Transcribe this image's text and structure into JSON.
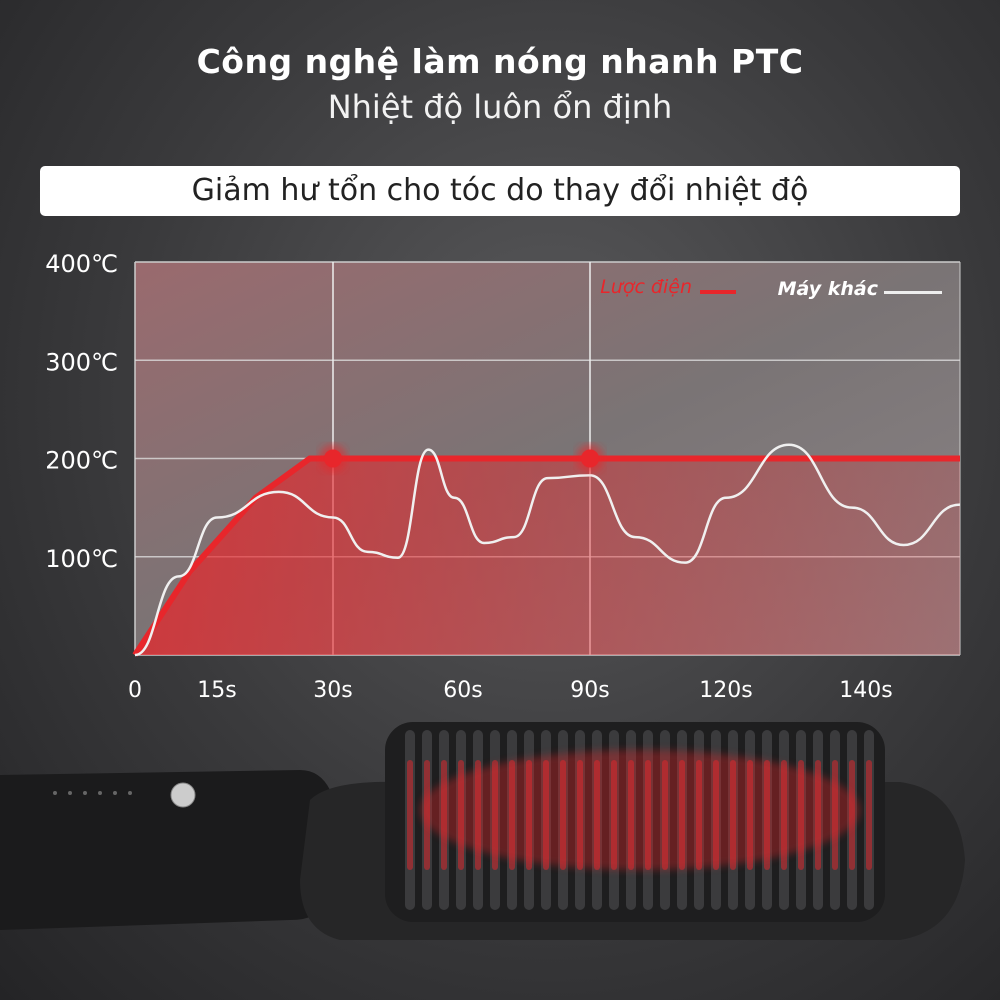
{
  "header": {
    "title": "Công nghệ làm nóng nhanh PTC",
    "subtitle": "Nhiệt độ luôn ổn định",
    "banner": "Giảm hư tổn cho tóc do thay đổi nhiệt độ"
  },
  "chart_data": {
    "type": "line",
    "xlabel": "",
    "ylabel": "",
    "x_ticks": [
      0,
      15,
      30,
      60,
      90,
      120,
      140
    ],
    "x_tick_labels": [
      "0",
      "15s",
      "30s",
      "60s",
      "90s",
      "120s",
      "140s"
    ],
    "y_ticks": [
      100,
      200,
      300,
      400
    ],
    "y_tick_labels": [
      "100℃",
      "200℃",
      "300℃",
      "400℃"
    ],
    "ylim": [
      0,
      400
    ],
    "grid": true,
    "legend_position": "top-right",
    "series": [
      {
        "name": "Lược điện",
        "color": "#e8262b",
        "x": [
          0,
          10,
          20,
          27,
          30,
          60,
          90,
          120,
          140,
          155
        ],
        "y": [
          0,
          85,
          160,
          200,
          200,
          200,
          200,
          200,
          200,
          200
        ],
        "markers_x": [
          30,
          90
        ]
      },
      {
        "name": "Máy khác",
        "color": "#f0f0f0",
        "x": [
          0,
          8,
          15,
          23,
          30,
          38,
          45,
          52,
          58,
          65,
          72,
          80,
          90,
          100,
          111,
          120,
          129,
          138,
          146,
          155
        ],
        "y": [
          0,
          80,
          140,
          166,
          140,
          105,
          99,
          209,
          160,
          114,
          120,
          180,
          183,
          120,
          94,
          160,
          214,
          150,
          112,
          153
        ]
      }
    ]
  },
  "colors": {
    "accent": "#e8262b",
    "background": "#3a3a3c"
  }
}
